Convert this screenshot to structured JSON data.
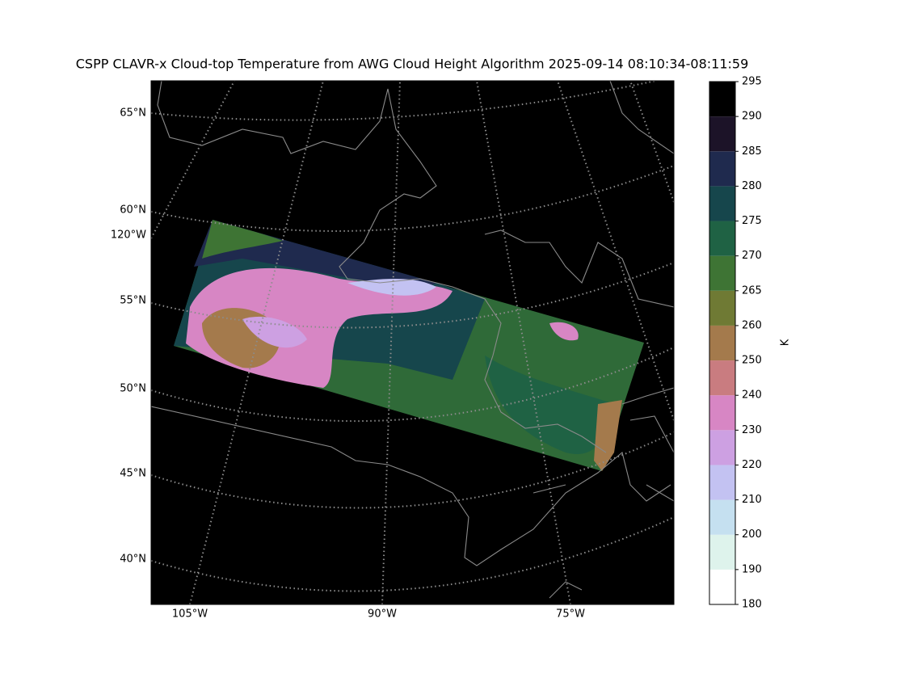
{
  "title": "CSPP CLAVR-x Cloud-top Temperature from AWG Cloud Height Algorithm 2025-09-14 08:10:34-08:11:59",
  "map": {
    "lat_labels": [
      "65°N",
      "60°N",
      "55°N",
      "50°N",
      "45°N",
      "40°N"
    ],
    "lon_labels_left": [
      "120°W"
    ],
    "lon_labels_bottom": [
      "105°W",
      "90°W",
      "75°W"
    ]
  },
  "colorbar": {
    "label": "K",
    "ticks": [
      180,
      190,
      200,
      210,
      220,
      230,
      240,
      250,
      260,
      265,
      270,
      275,
      280,
      285,
      290,
      295
    ],
    "colors": [
      "#ffffff",
      "#def3ec",
      "#c5e0f0",
      "#c3c2f2",
      "#cda0e2",
      "#d786c4",
      "#c97c80",
      "#a47a4c",
      "#6f7a34",
      "#3e7434",
      "#1f6244",
      "#16464c",
      "#1f2a4e",
      "#1c1328",
      "#000000"
    ]
  }
}
